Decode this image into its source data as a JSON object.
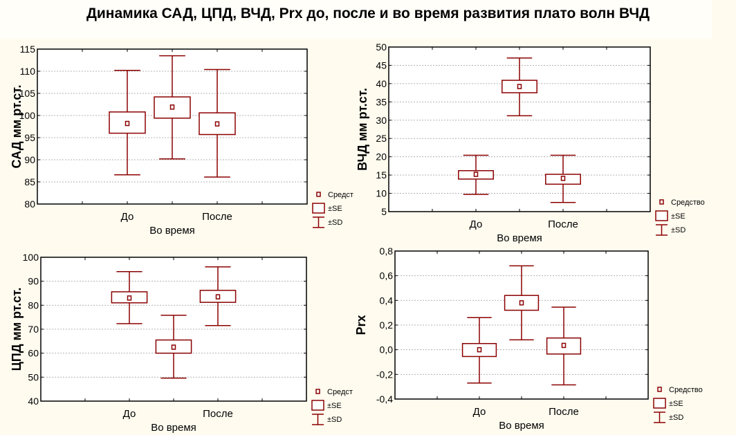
{
  "title": "Динамика САД, ЦПД, ВЧД, Prx до, после и во время развития плато волн ВЧД",
  "colors": {
    "box": "#8b0000",
    "grid": "#b0b0b0",
    "frame": "#000000",
    "background": "#fffbef"
  },
  "chart_data": [
    {
      "type": "box",
      "ylabel": "САД мм рт.ст.",
      "xlabel": "Во время",
      "tick_labels": [
        "До",
        "После"
      ],
      "ylim": [
        80,
        115
      ],
      "yticks": [
        80,
        85,
        90,
        95,
        100,
        105,
        110,
        115
      ],
      "ytick_labels": [
        "80",
        "85",
        "90",
        "95",
        "100",
        "105",
        "110",
        "115"
      ],
      "grid": true,
      "legend": {
        "mean": "Средст",
        "se": "±SE",
        "sd": "±SD",
        "placement": "bottom-right"
      },
      "groups": [
        {
          "category": "До",
          "mean": 98.2,
          "se_low": 96.0,
          "se_high": 100.8,
          "sd_low": 86.6,
          "sd_high": 110.2
        },
        {
          "category": "Во время",
          "mean": 101.9,
          "se_low": 99.4,
          "se_high": 104.2,
          "sd_low": 90.2,
          "sd_high": 113.5
        },
        {
          "category": "После",
          "mean": 98.1,
          "se_low": 95.7,
          "se_high": 100.6,
          "sd_low": 86.1,
          "sd_high": 110.4
        }
      ]
    },
    {
      "type": "box",
      "ylabel": "ВЧД мм рт.ст.",
      "xlabel": "Во время",
      "tick_labels": [
        "До",
        "После"
      ],
      "ylim": [
        5,
        50
      ],
      "yticks": [
        5,
        10,
        15,
        20,
        25,
        30,
        35,
        40,
        45,
        50
      ],
      "ytick_labels": [
        "5",
        "10",
        "15",
        "20",
        "25",
        "30",
        "35",
        "40",
        "45",
        "50"
      ],
      "grid": true,
      "legend": {
        "mean": "Средство",
        "se": "±SE",
        "sd": "±SD",
        "placement": "bottom-right"
      },
      "groups": [
        {
          "category": "До",
          "mean": 15.2,
          "se_low": 13.9,
          "se_high": 16.2,
          "sd_low": 9.7,
          "sd_high": 20.4
        },
        {
          "category": "Во время",
          "mean": 39.2,
          "se_low": 37.5,
          "se_high": 40.9,
          "sd_low": 31.2,
          "sd_high": 47.0
        },
        {
          "category": "После",
          "mean": 14.1,
          "se_low": 12.5,
          "se_high": 15.2,
          "sd_low": 7.5,
          "sd_high": 20.4
        }
      ]
    },
    {
      "type": "box",
      "ylabel": "ЦПД мм рт.ст.",
      "xlabel": "Во время",
      "tick_labels": [
        "До",
        "После"
      ],
      "ylim": [
        40,
        100
      ],
      "yticks": [
        40,
        50,
        60,
        70,
        80,
        90,
        100
      ],
      "ytick_labels": [
        "40",
        "50",
        "60",
        "70",
        "80",
        "90",
        "100"
      ],
      "grid": true,
      "legend": {
        "mean": "Средст",
        "se": "±SE",
        "sd": "±SD",
        "placement": "bottom-right"
      },
      "groups": [
        {
          "category": "До",
          "mean": 83.0,
          "se_low": 81.0,
          "se_high": 85.6,
          "sd_low": 72.3,
          "sd_high": 94.0
        },
        {
          "category": "Во время",
          "mean": 62.5,
          "se_low": 60.0,
          "se_high": 65.5,
          "sd_low": 49.6,
          "sd_high": 75.8
        },
        {
          "category": "После",
          "mean": 83.5,
          "se_low": 81.2,
          "se_high": 86.2,
          "sd_low": 71.5,
          "sd_high": 96.0
        }
      ]
    },
    {
      "type": "box",
      "ylabel": "Prx",
      "xlabel": "Во время",
      "tick_labels": [
        "До",
        "После"
      ],
      "ylim": [
        -0.4,
        0.8
      ],
      "yticks": [
        -0.4,
        -0.2,
        0.0,
        0.2,
        0.4,
        0.6,
        0.8
      ],
      "ytick_labels": [
        "-0,4",
        "-0,2",
        "0,0",
        "0,2",
        "0,4",
        "0,6",
        "0,8"
      ],
      "grid": true,
      "legend": {
        "mean": "Средство",
        "se": "±SE",
        "sd": "±SD",
        "placement": "bottom-right"
      },
      "groups": [
        {
          "category": "До",
          "mean": 0.0,
          "se_low": -0.055,
          "se_high": 0.05,
          "sd_low": -0.27,
          "sd_high": 0.26
        },
        {
          "category": "Во время",
          "mean": 0.38,
          "se_low": 0.32,
          "se_high": 0.44,
          "sd_low": 0.08,
          "sd_high": 0.68
        },
        {
          "category": "После",
          "mean": 0.035,
          "se_low": -0.035,
          "se_high": 0.095,
          "sd_low": -0.285,
          "sd_high": 0.345
        }
      ]
    }
  ]
}
